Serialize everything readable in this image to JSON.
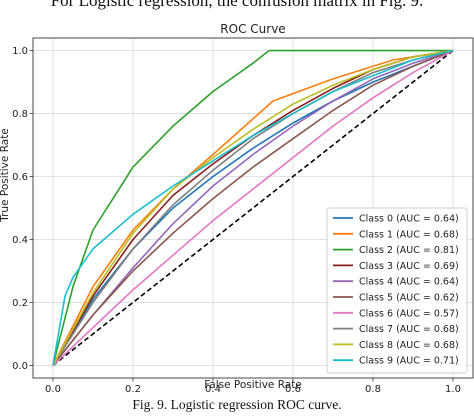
{
  "page_top_text": "For Logistic regression, the confusion matrix in Fig. 9.",
  "caption": "Fig. 9.    Logistic regression ROC curve.",
  "chart_data": {
    "type": "line",
    "title": "ROC Curve",
    "xlabel": "False Positive Rate",
    "ylabel": "True Positive Rate",
    "xlim": [
      -0.05,
      1.05
    ],
    "ylim": [
      -0.04,
      1.04
    ],
    "xticks": [
      0.0,
      0.2,
      0.4,
      0.6,
      0.8,
      1.0
    ],
    "yticks": [
      0.0,
      0.2,
      0.4,
      0.6,
      0.8,
      1.0
    ],
    "xtick_labels": [
      "0.0",
      "0.2",
      "0.4",
      "0.6",
      "0.8",
      "1.0"
    ],
    "ytick_labels": [
      "0.0",
      "0.2",
      "0.4",
      "0.6",
      "0.8",
      "1.0"
    ],
    "grid": true,
    "legend_position": "lower-right",
    "diagonal": {
      "x": [
        0,
        1
      ],
      "y": [
        0,
        1
      ],
      "color": "#000000",
      "style": "dashed"
    },
    "series": [
      {
        "name": "Class 0 (AUC = 0.64)",
        "color": "#1f77b4",
        "x": [
          0,
          0.1,
          0.2,
          0.3,
          0.4,
          0.5,
          0.6,
          0.7,
          0.8,
          0.9,
          1.0
        ],
        "y": [
          0,
          0.21,
          0.37,
          0.5,
          0.6,
          0.69,
          0.77,
          0.84,
          0.9,
          0.95,
          1.0
        ]
      },
      {
        "name": "Class 1 (AUC = 0.68)",
        "color": "#ff7f0e",
        "x": [
          0,
          0.1,
          0.2,
          0.3,
          0.4,
          0.55,
          0.7,
          0.85,
          1.0
        ],
        "y": [
          0,
          0.25,
          0.43,
          0.56,
          0.67,
          0.84,
          0.91,
          0.97,
          1.0
        ]
      },
      {
        "name": "Class 2 (AUC = 0.81)",
        "color": "#2ca02c",
        "x": [
          0,
          0.05,
          0.1,
          0.2,
          0.3,
          0.4,
          0.5,
          0.54,
          0.7,
          0.85,
          1.0
        ],
        "y": [
          0,
          0.25,
          0.43,
          0.63,
          0.76,
          0.87,
          0.96,
          1.0,
          1.0,
          1.0,
          1.0
        ]
      },
      {
        "name": "Class 3 (AUC = 0.69)",
        "color": "#8c1d1d",
        "x": [
          0,
          0.1,
          0.2,
          0.3,
          0.4,
          0.5,
          0.6,
          0.7,
          0.8,
          0.9,
          1.0
        ],
        "y": [
          0,
          0.22,
          0.4,
          0.54,
          0.64,
          0.73,
          0.81,
          0.88,
          0.94,
          0.98,
          1.0
        ]
      },
      {
        "name": "Class 4 (AUC = 0.64)",
        "color": "#9467bd",
        "x": [
          0,
          0.1,
          0.2,
          0.3,
          0.4,
          0.5,
          0.6,
          0.7,
          0.8,
          0.9,
          1.0
        ],
        "y": [
          0,
          0.16,
          0.31,
          0.45,
          0.57,
          0.67,
          0.76,
          0.84,
          0.91,
          0.96,
          1.0
        ]
      },
      {
        "name": "Class 5 (AUC = 0.62)",
        "color": "#8c564b",
        "x": [
          0,
          0.1,
          0.2,
          0.3,
          0.4,
          0.5,
          0.6,
          0.7,
          0.8,
          0.9,
          1.0
        ],
        "y": [
          0,
          0.16,
          0.3,
          0.42,
          0.53,
          0.63,
          0.72,
          0.81,
          0.89,
          0.95,
          1.0
        ]
      },
      {
        "name": "Class 6 (AUC = 0.57)",
        "color": "#e377c2",
        "x": [
          0,
          0.1,
          0.2,
          0.3,
          0.4,
          0.5,
          0.6,
          0.7,
          0.8,
          0.9,
          1.0
        ],
        "y": [
          0,
          0.12,
          0.24,
          0.35,
          0.46,
          0.56,
          0.66,
          0.76,
          0.85,
          0.93,
          1.0
        ]
      },
      {
        "name": "Class 7 (AUC = 0.68)",
        "color": "#7f7f7f",
        "x": [
          0,
          0.1,
          0.2,
          0.3,
          0.4,
          0.5,
          0.6,
          0.7,
          0.8,
          0.9,
          1.0
        ],
        "y": [
          0,
          0.2,
          0.37,
          0.51,
          0.62,
          0.72,
          0.8,
          0.87,
          0.93,
          0.97,
          1.0
        ]
      },
      {
        "name": "Class 8 (AUC = 0.68)",
        "color": "#bcbd22",
        "x": [
          0,
          0.1,
          0.2,
          0.3,
          0.4,
          0.5,
          0.6,
          0.7,
          0.8,
          0.9,
          1.0
        ],
        "y": [
          0,
          0.23,
          0.42,
          0.56,
          0.66,
          0.75,
          0.83,
          0.89,
          0.94,
          0.98,
          1.0
        ]
      },
      {
        "name": "Class 9 (AUC = 0.71)",
        "color": "#17becf",
        "x": [
          0,
          0.03,
          0.05,
          0.1,
          0.2,
          0.3,
          0.4,
          0.5,
          0.6,
          0.7,
          0.8,
          0.9,
          1.0
        ],
        "y": [
          0,
          0.22,
          0.28,
          0.37,
          0.48,
          0.57,
          0.65,
          0.73,
          0.8,
          0.87,
          0.92,
          0.97,
          1.0
        ]
      }
    ]
  }
}
